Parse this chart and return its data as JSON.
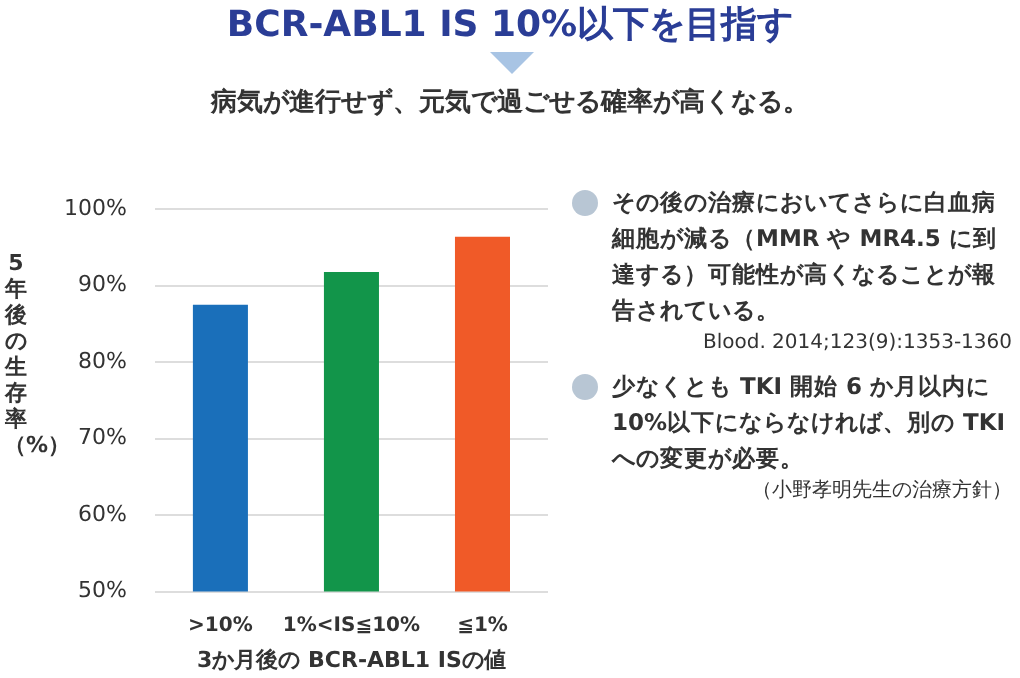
{
  "chart_data": {
    "type": "bar",
    "title": "BCR-ABL1 IS 10%以下を目指す",
    "subtitle": "病気が進行せず、元気で過ごせる確率が高くなる。",
    "xlabel": "3か月後の BCR-ABL1 ISの値",
    "ylabel": "5年後の生存率（%）",
    "categories": [
      ">10%",
      "1%<IS≦10%",
      "≦1%"
    ],
    "values": [
      87.5,
      91.8,
      96.4
    ],
    "colors": [
      "#1a6fba",
      "#12954a",
      "#f05a28"
    ],
    "ylim": [
      50,
      100
    ],
    "yticks": [
      {
        "value": 50,
        "label": "50%"
      },
      {
        "value": 60,
        "label": "60%"
      },
      {
        "value": 70,
        "label": "70%"
      },
      {
        "value": 80,
        "label": "80%"
      },
      {
        "value": 90,
        "label": "90%"
      },
      {
        "value": 100,
        "label": "100%"
      }
    ],
    "grid": "y",
    "annotations": [
      "その後の治療においてさらに白血病細胞が減る（MMR や MR4.5 に到達する）可能性が高くなることが報告されている。",
      "Blood. 2014;123(9):1353-1360",
      "少なくとも TKI 開始 6 か月以内に 10%以下にならなければ、別の TKI への変更が必要。",
      "（小野孝明先生の治療方針）"
    ]
  }
}
